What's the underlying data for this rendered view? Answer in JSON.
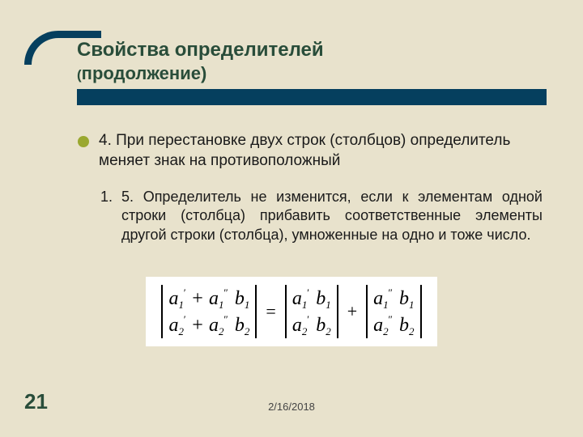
{
  "title": {
    "line1": "Свойства определителей",
    "line2_prefix": "(",
    "line2_main": "продолжение)"
  },
  "bullet": {
    "text": "4. При перестановке двух строк (столбцов) определитель меняет знак на противоположный"
  },
  "numbered": {
    "label": "1.",
    "text": "5. Определитель не изменится, если к элементам одной строки (столбца) прибавить соответственные элементы другой строки (столбца), умноженные на одно и тоже число."
  },
  "formula": {
    "lhs": {
      "c1": {
        "r1": [
          "a",
          "1",
          "′",
          " + a",
          "1",
          "″"
        ],
        "r2": [
          "a",
          "2",
          "′",
          " + a",
          "2",
          "″"
        ]
      },
      "c2": {
        "r1": [
          "b",
          "1",
          ""
        ],
        "r2": [
          "b",
          "2",
          ""
        ]
      }
    },
    "eq": "=",
    "m1": {
      "c1": {
        "r1": [
          "a",
          "1",
          "′"
        ],
        "r2": [
          "a",
          "2",
          "′"
        ]
      },
      "c2": {
        "r1": [
          "b",
          "1",
          ""
        ],
        "r2": [
          "b",
          "2",
          ""
        ]
      }
    },
    "plus": "+",
    "m2": {
      "c1": {
        "r1": [
          "a",
          "1",
          "″"
        ],
        "r2": [
          "a",
          "2",
          "″"
        ]
      },
      "c2": {
        "r1": [
          "b",
          "1",
          ""
        ],
        "r2": [
          "b",
          "2",
          ""
        ]
      }
    }
  },
  "footer": {
    "slide_number": "21",
    "date": "2/16/2018"
  },
  "style": {
    "background": "#e8e2cc",
    "accent_dark": "#053f5e",
    "title_color": "#294d3a",
    "bullet_color": "#9aa830",
    "formula_bg": "#ffffff"
  }
}
